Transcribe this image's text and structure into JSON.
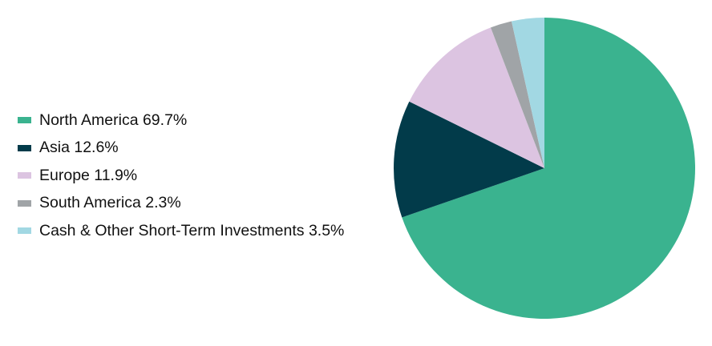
{
  "chart_data": {
    "type": "pie",
    "title": "",
    "legend_position": "left",
    "start_angle_deg": 0,
    "direction": "clockwise",
    "slices": [
      {
        "label": "North America 69.7%",
        "name": "North America",
        "value": 69.7,
        "color": "#3ab38f"
      },
      {
        "label": "Asia 12.6%",
        "name": "Asia",
        "value": 12.6,
        "color": "#023b4a"
      },
      {
        "label": "Europe 11.9%",
        "name": "Europe",
        "value": 11.9,
        "color": "#dcc4e1"
      },
      {
        "label": "South America 2.3%",
        "name": "South America",
        "value": 2.3,
        "color": "#a0a4a7"
      },
      {
        "label": "Cash & Other Short-Term Investments 3.5%",
        "name": "Cash & Other Short-Term Investments",
        "value": 3.5,
        "color": "#a2d8e3"
      }
    ]
  }
}
